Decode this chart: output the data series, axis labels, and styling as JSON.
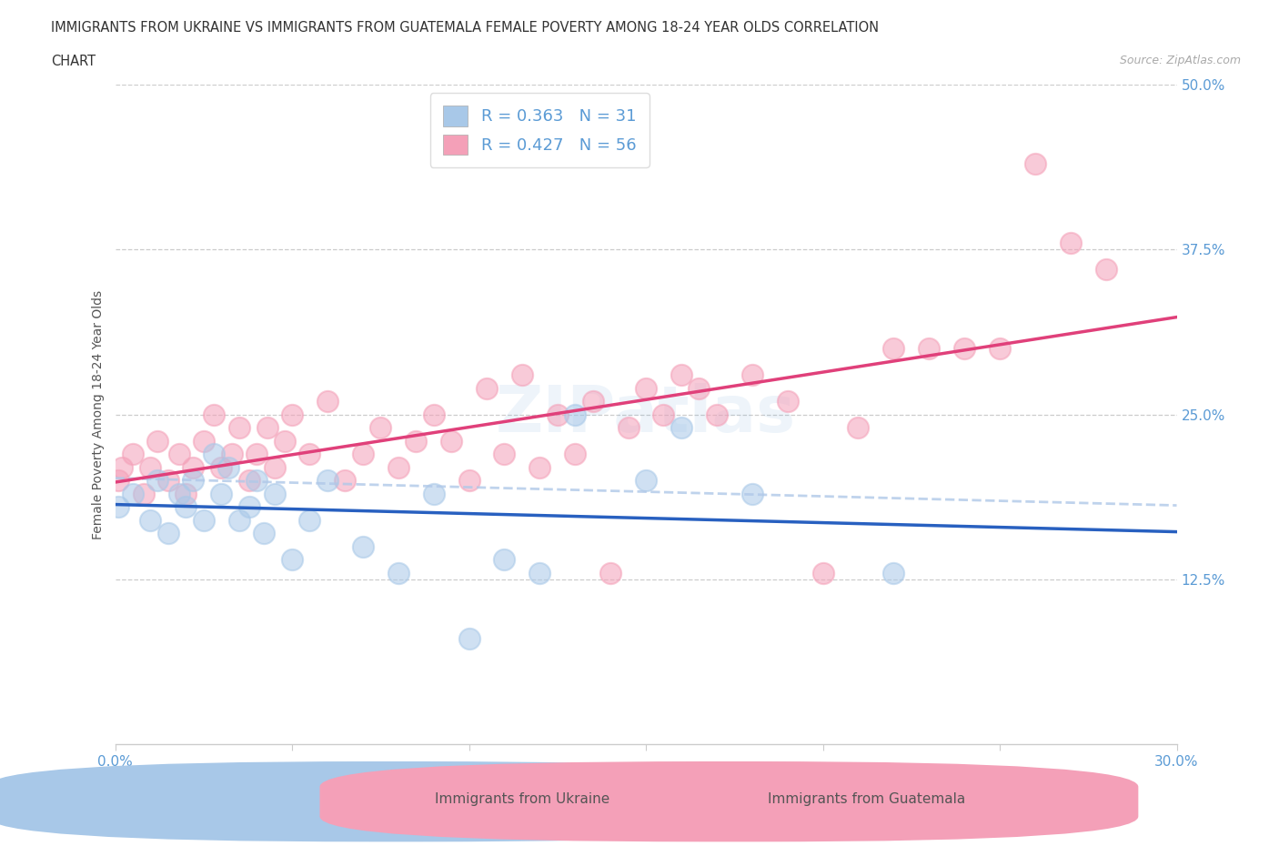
{
  "title_line1": "IMMIGRANTS FROM UKRAINE VS IMMIGRANTS FROM GUATEMALA FEMALE POVERTY AMONG 18-24 YEAR OLDS CORRELATION",
  "title_line2": "CHART",
  "source": "Source: ZipAtlas.com",
  "ylabel": "Female Poverty Among 18-24 Year Olds",
  "xlim": [
    0.0,
    0.3
  ],
  "ylim": [
    0.0,
    0.5
  ],
  "xticks": [
    0.0,
    0.05,
    0.1,
    0.15,
    0.2,
    0.25,
    0.3
  ],
  "xtick_labels": [
    "0.0%",
    "",
    "",
    "",
    "",
    "",
    "30.0%"
  ],
  "yticks_right": [
    0.0,
    0.125,
    0.25,
    0.375,
    0.5
  ],
  "ytick_labels_right": [
    "",
    "12.5%",
    "25.0%",
    "37.5%",
    "50.0%"
  ],
  "ukraine_scatter_color": "#a8c8e8",
  "guatemala_scatter_color": "#f4a0b8",
  "trend_ukraine_color": "#2860c0",
  "trend_guatemala_color": "#e0407a",
  "trend_dashed_color": "#b0c8e8",
  "R_ukraine": 0.363,
  "N_ukraine": 31,
  "R_guatemala": 0.427,
  "N_guatemala": 56,
  "legend_label_ukraine": "Immigrants from Ukraine",
  "legend_label_guatemala": "Immigrants from Guatemala",
  "ukraine_x": [
    0.001,
    0.005,
    0.01,
    0.012,
    0.015,
    0.018,
    0.02,
    0.022,
    0.025,
    0.028,
    0.03,
    0.032,
    0.035,
    0.038,
    0.04,
    0.042,
    0.045,
    0.05,
    0.055,
    0.06,
    0.07,
    0.08,
    0.09,
    0.1,
    0.11,
    0.12,
    0.13,
    0.15,
    0.16,
    0.18,
    0.22
  ],
  "ukraine_y": [
    0.18,
    0.19,
    0.17,
    0.2,
    0.16,
    0.19,
    0.18,
    0.2,
    0.17,
    0.22,
    0.19,
    0.21,
    0.17,
    0.18,
    0.2,
    0.16,
    0.19,
    0.14,
    0.17,
    0.2,
    0.15,
    0.13,
    0.19,
    0.08,
    0.14,
    0.13,
    0.25,
    0.2,
    0.24,
    0.19,
    0.13
  ],
  "guatemala_x": [
    0.001,
    0.002,
    0.005,
    0.008,
    0.01,
    0.012,
    0.015,
    0.018,
    0.02,
    0.022,
    0.025,
    0.028,
    0.03,
    0.033,
    0.035,
    0.038,
    0.04,
    0.043,
    0.045,
    0.048,
    0.05,
    0.055,
    0.06,
    0.065,
    0.07,
    0.075,
    0.08,
    0.085,
    0.09,
    0.095,
    0.1,
    0.105,
    0.11,
    0.115,
    0.12,
    0.125,
    0.13,
    0.135,
    0.14,
    0.145,
    0.15,
    0.155,
    0.16,
    0.165,
    0.17,
    0.18,
    0.19,
    0.2,
    0.21,
    0.22,
    0.23,
    0.24,
    0.25,
    0.26,
    0.27,
    0.28
  ],
  "guatemala_y": [
    0.2,
    0.21,
    0.22,
    0.19,
    0.21,
    0.23,
    0.2,
    0.22,
    0.19,
    0.21,
    0.23,
    0.25,
    0.21,
    0.22,
    0.24,
    0.2,
    0.22,
    0.24,
    0.21,
    0.23,
    0.25,
    0.22,
    0.26,
    0.2,
    0.22,
    0.24,
    0.21,
    0.23,
    0.25,
    0.23,
    0.2,
    0.27,
    0.22,
    0.28,
    0.21,
    0.25,
    0.22,
    0.26,
    0.13,
    0.24,
    0.27,
    0.25,
    0.28,
    0.27,
    0.25,
    0.28,
    0.26,
    0.13,
    0.24,
    0.3,
    0.3,
    0.3,
    0.3,
    0.44,
    0.38,
    0.36
  ]
}
